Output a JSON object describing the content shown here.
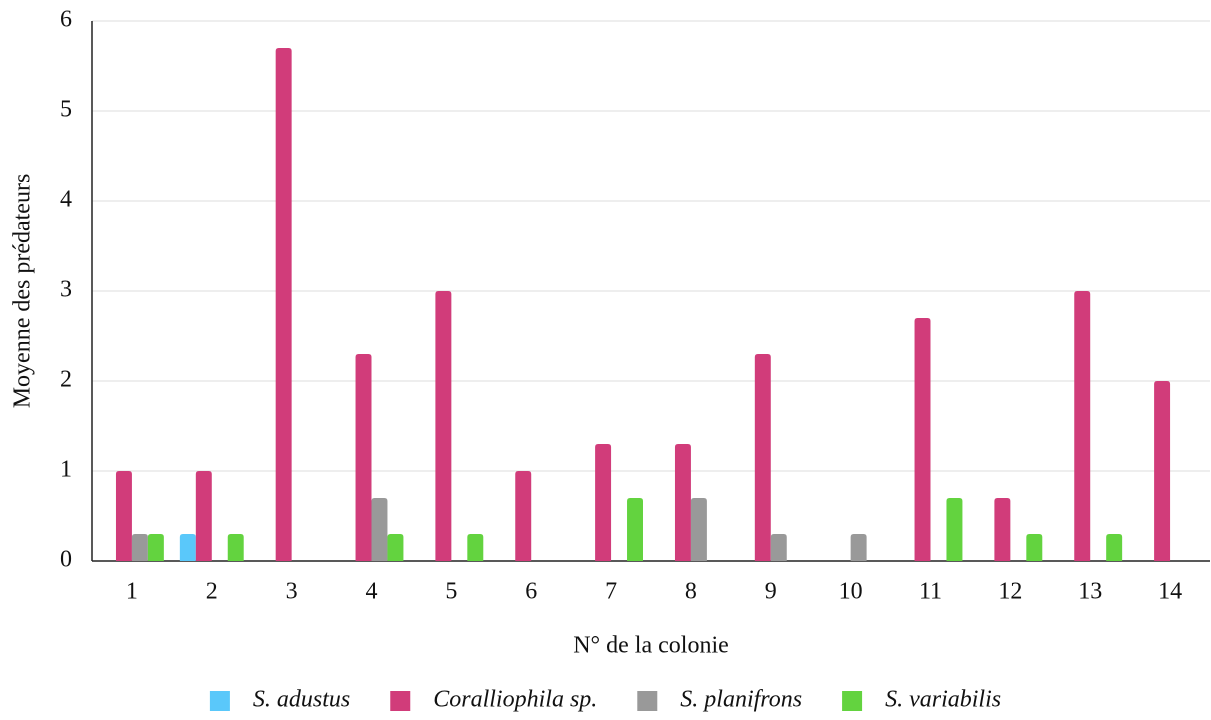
{
  "chart_data": {
    "type": "bar",
    "x_label": "N° de la colonie",
    "y_label": "Moyenne des prédateurs",
    "categories": [
      "1",
      "2",
      "3",
      "4",
      "5",
      "6",
      "7",
      "8",
      "9",
      "10",
      "11",
      "12",
      "13",
      "14"
    ],
    "series": [
      {
        "name": "S. adustus",
        "color": "#5ac8fa",
        "values": [
          0,
          0.3,
          0,
          0,
          0,
          0,
          0,
          0,
          0,
          0,
          0,
          0,
          0,
          0
        ]
      },
      {
        "name": "Coralliophila sp.",
        "color": "#d13c7a",
        "values": [
          1,
          1,
          5.7,
          2.3,
          3,
          1,
          1.3,
          1.3,
          2.3,
          0,
          2.7,
          0.7,
          3,
          2
        ]
      },
      {
        "name": "S. planifrons",
        "color": "#999999",
        "values": [
          0.3,
          0,
          0,
          0.7,
          0,
          0,
          0,
          0.7,
          0.3,
          0.3,
          0,
          0,
          0,
          0
        ]
      },
      {
        "name": "S. variabilis",
        "color": "#63d33f",
        "values": [
          0.3,
          0.3,
          0,
          0.3,
          0.3,
          0,
          0.7,
          0,
          0,
          0,
          0.7,
          0.3,
          0.3,
          0
        ]
      }
    ],
    "ylim": [
      0,
      6
    ],
    "yticks": [
      0,
      1,
      2,
      3,
      4,
      5,
      6
    ],
    "grid": true,
    "legend": "bottom"
  }
}
